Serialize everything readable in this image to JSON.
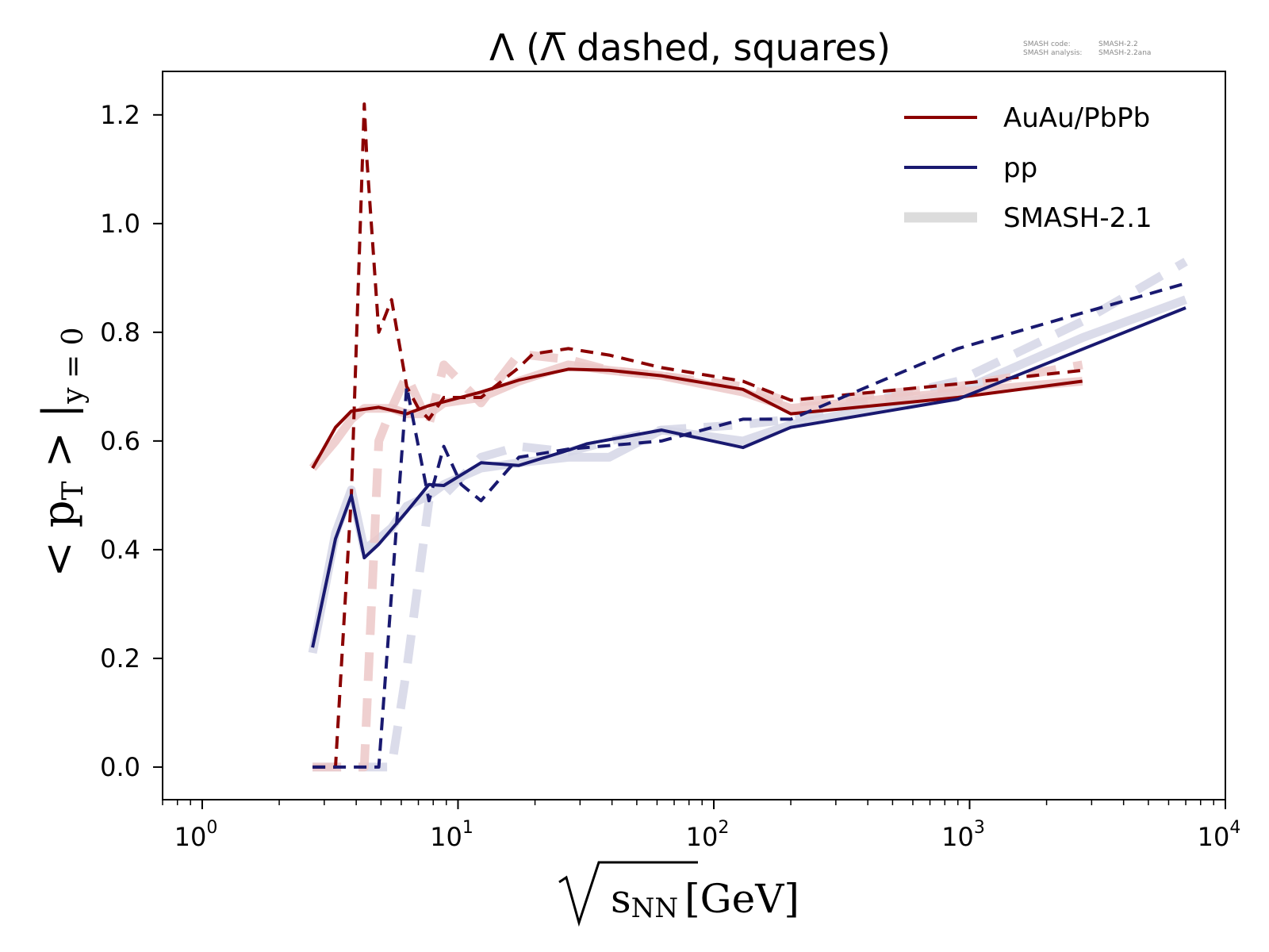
{
  "info": {
    "code_label": "SMASH code:",
    "code_value": "SMASH-2.2",
    "analysis_label": "SMASH analysis:",
    "analysis_value": "SMASH-2.2ana"
  },
  "colors": {
    "auau": "#8b0000",
    "pp": "#191970",
    "auau_ref": "#ecc8c8",
    "pp_ref": "#d5d6e6",
    "legend_ref": "#dcdcdc"
  },
  "chart_data": {
    "type": "line",
    "title": "Λ (Λ̅ dashed, squares)",
    "xlabel_base": "s",
    "xlabel_sub": "NN",
    "xlabel_unit": "[GeV]",
    "ylabel_parts": [
      "< p",
      "T",
      " > |",
      "y = 0"
    ],
    "x_scale": "log",
    "xlim": [
      0.7,
      10000
    ],
    "ylim": [
      -0.06,
      1.28
    ],
    "x_ticks": [
      {
        "value": 1,
        "base": "10",
        "exp": "0"
      },
      {
        "value": 10,
        "base": "10",
        "exp": "1"
      },
      {
        "value": 100,
        "base": "10",
        "exp": "2"
      },
      {
        "value": 1000,
        "base": "10",
        "exp": "3"
      },
      {
        "value": 10000,
        "base": "10",
        "exp": "4"
      }
    ],
    "y_ticks": [
      {
        "value": 0.0,
        "label": "0.0"
      },
      {
        "value": 0.2,
        "label": "0.2"
      },
      {
        "value": 0.4,
        "label": "0.4"
      },
      {
        "value": 0.6,
        "label": "0.6"
      },
      {
        "value": 0.8,
        "label": "0.8"
      },
      {
        "value": 1.0,
        "label": "1.0"
      },
      {
        "value": 1.2,
        "label": "1.2"
      }
    ],
    "grid": false,
    "legend_position": "top-right",
    "legend": [
      {
        "label": "AuAu/PbPb",
        "color_key": "auau",
        "style": "solid"
      },
      {
        "label": "pp",
        "color_key": "pp",
        "style": "solid"
      },
      {
        "label": "SMASH-2.1",
        "color_key": "legend_ref",
        "style": "thick"
      }
    ],
    "series": [
      {
        "group": "reference",
        "color_key": "pp_ref",
        "dashed": false,
        "x": [
          2.7,
          3.32,
          3.83,
          4.3,
          4.9,
          5.5,
          6.3,
          7.7,
          8.8,
          12.3,
          17.3,
          27,
          39,
          62.4,
          130,
          200,
          900,
          2760,
          7000
        ],
        "y": [
          0.21,
          0.43,
          0.51,
          0.4,
          0.42,
          0.44,
          0.48,
          0.5,
          0.52,
          0.55,
          0.56,
          0.57,
          0.57,
          0.62,
          0.6,
          0.63,
          0.69,
          0.79,
          0.86
        ]
      },
      {
        "group": "reference",
        "color_key": "pp_ref",
        "dashed": true,
        "x": [
          2.7,
          3.32,
          3.83,
          4.3,
          4.9,
          5.5,
          6.3,
          7.7,
          8.8,
          12.3,
          17.3,
          27,
          39,
          62.4,
          130,
          200,
          900,
          2760,
          7000
        ],
        "y": [
          0.0,
          0.0,
          0.0,
          0.0,
          0.0,
          0.0,
          0.18,
          0.49,
          0.5,
          0.57,
          0.59,
          0.58,
          0.6,
          0.62,
          0.63,
          0.64,
          0.71,
          0.82,
          0.93
        ]
      },
      {
        "group": "reference",
        "color_key": "auau_ref",
        "dashed": false,
        "x": [
          2.7,
          3.32,
          3.83,
          4.3,
          4.9,
          5.5,
          6.3,
          7.7,
          8.8,
          12.3,
          17.3,
          27,
          39,
          62.4,
          130,
          200,
          900,
          2760
        ],
        "y": [
          0.55,
          0.6,
          0.64,
          0.66,
          0.66,
          0.66,
          0.65,
          0.65,
          0.67,
          0.68,
          0.71,
          0.74,
          0.73,
          0.72,
          0.69,
          0.66,
          0.69,
          0.71
        ]
      },
      {
        "group": "reference",
        "color_key": "auau_ref",
        "dashed": true,
        "x": [
          2.7,
          3.32,
          3.83,
          4.3,
          4.9,
          5.5,
          6.3,
          7.7,
          8.8,
          12.3,
          17.3,
          27,
          39,
          62.4,
          130,
          200,
          900,
          2760
        ],
        "y": [
          0.0,
          0.0,
          0.0,
          0.0,
          0.6,
          0.66,
          0.72,
          0.63,
          0.74,
          0.67,
          0.76,
          0.75,
          0.73,
          0.72,
          0.7,
          0.67,
          0.7,
          0.74
        ]
      },
      {
        "group": "main",
        "name": "AuAu/PbPb",
        "color_key": "auau",
        "dashed": false,
        "x": [
          2.7,
          3.32,
          3.83,
          4.9,
          6.3,
          7.7,
          8.8,
          12.3,
          17.3,
          27,
          39,
          62.4,
          130,
          200,
          900,
          2760
        ],
        "y": [
          0.55,
          0.625,
          0.655,
          0.662,
          0.65,
          0.665,
          0.672,
          0.69,
          0.712,
          0.732,
          0.73,
          0.72,
          0.695,
          0.65,
          0.68,
          0.71
        ]
      },
      {
        "group": "main",
        "name": "AuAu/PbPb",
        "color_key": "auau",
        "dashed": true,
        "x": [
          2.7,
          3.32,
          3.83,
          4.3,
          4.4,
          4.9,
          5.5,
          6.3,
          7.0,
          7.7,
          8.8,
          12.3,
          17.3,
          19.6,
          27,
          39,
          62.4,
          130,
          200,
          900,
          2760
        ],
        "y": [
          0.0,
          0.0,
          0.5,
          1.22,
          1.12,
          0.8,
          0.86,
          0.7,
          0.66,
          0.64,
          0.68,
          0.68,
          0.735,
          0.76,
          0.77,
          0.758,
          0.735,
          0.71,
          0.675,
          0.705,
          0.73
        ]
      },
      {
        "group": "main",
        "name": "pp",
        "color_key": "pp",
        "dashed": false,
        "x": [
          2.7,
          3.32,
          3.83,
          4.3,
          4.9,
          6.3,
          7.7,
          8.8,
          12.3,
          17.3,
          27,
          32,
          62.4,
          130,
          200,
          900,
          7000
        ],
        "y": [
          0.22,
          0.42,
          0.5,
          0.385,
          0.41,
          0.47,
          0.52,
          0.518,
          0.56,
          0.555,
          0.583,
          0.595,
          0.62,
          0.588,
          0.625,
          0.677,
          0.845
        ]
      },
      {
        "group": "main",
        "name": "pp",
        "color_key": "pp",
        "dashed": true,
        "x": [
          2.7,
          3.32,
          3.83,
          4.3,
          4.9,
          6.3,
          7.7,
          8.8,
          10.3,
          12.3,
          17.3,
          27,
          62.4,
          130,
          200,
          900,
          7000
        ],
        "y": [
          0.0,
          0.0,
          0.0,
          0.0,
          0.0,
          0.7,
          0.49,
          0.59,
          0.52,
          0.49,
          0.57,
          0.585,
          0.6,
          0.64,
          0.64,
          0.77,
          0.89
        ]
      }
    ]
  }
}
